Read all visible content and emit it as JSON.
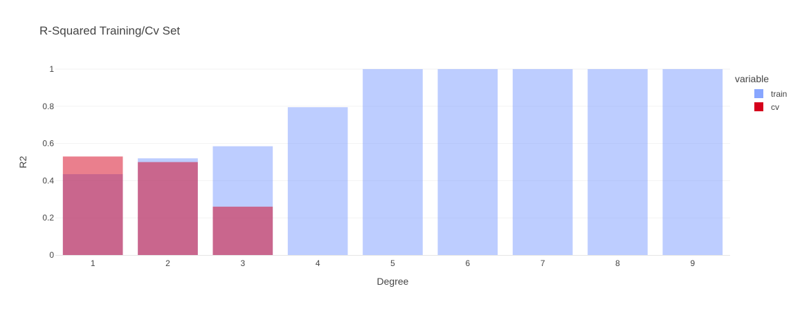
{
  "chart_data": {
    "type": "bar",
    "barmode": "overlay",
    "title": "R-Squared Training/Cv Set",
    "xlabel": "Degree",
    "ylabel": "R2",
    "categories": [
      "1",
      "2",
      "3",
      "4",
      "5",
      "6",
      "7",
      "8",
      "9"
    ],
    "ylim": [
      0,
      1
    ],
    "yticks": [
      "0",
      "0.2",
      "0.4",
      "0.6",
      "0.8",
      "1"
    ],
    "grid": true,
    "legend": {
      "title": "variable",
      "placement": "right"
    },
    "series": [
      {
        "name": "train",
        "color": "#7b9cff",
        "values": [
          0.435,
          0.52,
          0.585,
          0.795,
          1.0,
          1.0,
          1.0,
          1.0,
          1.0
        ]
      },
      {
        "name": "cv",
        "color": "#d5001c",
        "values": [
          0.53,
          0.5,
          0.26,
          null,
          null,
          null,
          null,
          null,
          null
        ]
      }
    ]
  }
}
